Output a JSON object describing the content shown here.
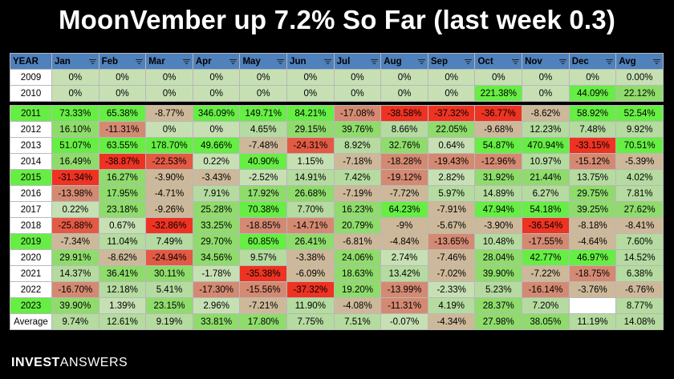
{
  "chart_data": {
    "type": "table",
    "title": "MoonVember up 7.2% So Far (last week 0.3)",
    "header": [
      "YEAR",
      "Jan",
      "Feb",
      "Mar",
      "Apr",
      "May",
      "Jun",
      "Jul",
      "Aug",
      "Sep",
      "Oct",
      "Nov",
      "Dec",
      "Avg"
    ],
    "rows": [
      {
        "year": "2009",
        "values": [
          0,
          0,
          0,
          0,
          0,
          0,
          0,
          0,
          0,
          0,
          0,
          0,
          0.0
        ],
        "labels": [
          "0%",
          "0%",
          "0%",
          "0%",
          "0%",
          "0%",
          "0%",
          "0%",
          "0%",
          "0%",
          "0%",
          "0%",
          "0.00%"
        ],
        "highlight": false
      },
      {
        "year": "2010",
        "values": [
          0,
          0,
          0,
          0,
          0,
          0,
          0,
          0,
          0,
          221.38,
          0,
          44.09,
          22.12
        ],
        "labels": [
          "0%",
          "0%",
          "0%",
          "0%",
          "0%",
          "0%",
          "0%",
          "0%",
          "0%",
          "221.38%",
          "0%",
          "44.09%",
          "22.12%"
        ],
        "highlight": false
      },
      {
        "year": "2011",
        "values": [
          73.33,
          65.38,
          -8.77,
          346.09,
          149.71,
          84.21,
          -17.08,
          -38.58,
          -37.32,
          -36.77,
          -8.62,
          58.92,
          52.54
        ],
        "labels": [
          "73.33%",
          "65.38%",
          "-8.77%",
          "346.09%",
          "149.71%",
          "84.21%",
          "-17.08%",
          "-38.58%",
          "-37.32%",
          "-36.77%",
          "-8.62%",
          "58.92%",
          "52.54%"
        ],
        "highlight": true
      },
      {
        "year": "2012",
        "values": [
          16.1,
          -11.31,
          0,
          0,
          4.65,
          29.15,
          39.76,
          8.66,
          22.05,
          -9.68,
          12.23,
          7.48,
          9.92
        ],
        "labels": [
          "16.10%",
          "-11.31%",
          "0%",
          "0%",
          "4.65%",
          "29.15%",
          "39.76%",
          "8.66%",
          "22.05%",
          "-9.68%",
          "12.23%",
          "7.48%",
          "9.92%"
        ],
        "highlight": false
      },
      {
        "year": "2013",
        "values": [
          51.07,
          63.55,
          178.7,
          49.66,
          -7.48,
          -24.31,
          8.92,
          32.76,
          0.64,
          54.87,
          470.94,
          -33.15,
          70.51
        ],
        "labels": [
          "51.07%",
          "63.55%",
          "178.70%",
          "49.66%",
          "-7.48%",
          "-24.31%",
          "8.92%",
          "32.76%",
          "0.64%",
          "54.87%",
          "470.94%",
          "-33.15%",
          "70.51%"
        ],
        "highlight": false
      },
      {
        "year": "2014",
        "values": [
          16.49,
          -38.87,
          -22.53,
          0.22,
          40.9,
          1.15,
          -7.18,
          -18.28,
          -19.43,
          -12.96,
          10.97,
          -15.12,
          -5.39
        ],
        "labels": [
          "16.49%",
          "-38.87%",
          "-22.53%",
          "0.22%",
          "40.90%",
          "1.15%",
          "-7.18%",
          "-18.28%",
          "-19.43%",
          "-12.96%",
          "10.97%",
          "-15.12%",
          "-5.39%"
        ],
        "highlight": false
      },
      {
        "year": "2015",
        "values": [
          -31.34,
          16.27,
          -3.9,
          -3.43,
          -2.52,
          14.91,
          7.42,
          -19.12,
          2.82,
          31.92,
          21.44,
          13.75,
          4.02
        ],
        "labels": [
          "-31.34%",
          "16.27%",
          "-3.90%",
          "-3.43%",
          "-2.52%",
          "14.91%",
          "7.42%",
          "-19.12%",
          "2.82%",
          "31.92%",
          "21.44%",
          "13.75%",
          "4.02%"
        ],
        "highlight": true
      },
      {
        "year": "2016",
        "values": [
          -13.98,
          17.95,
          -4.71,
          7.91,
          17.92,
          26.68,
          -7.19,
          -7.72,
          5.97,
          14.89,
          6.27,
          29.75,
          7.81
        ],
        "labels": [
          "-13.98%",
          "17.95%",
          "-4.71%",
          "7.91%",
          "17.92%",
          "26.68%",
          "-7.19%",
          "-7.72%",
          "5.97%",
          "14.89%",
          "6.27%",
          "29.75%",
          "7.81%"
        ],
        "highlight": false
      },
      {
        "year": "2017",
        "values": [
          0.22,
          23.18,
          -9.26,
          25.28,
          70.38,
          7.7,
          16.23,
          64.23,
          -7.91,
          47.94,
          54.18,
          39.25,
          27.62
        ],
        "labels": [
          "0.22%",
          "23.18%",
          "-9.26%",
          "25.28%",
          "70.38%",
          "7.70%",
          "16.23%",
          "64.23%",
          "-7.91%",
          "47.94%",
          "54.18%",
          "39.25%",
          "27.62%"
        ],
        "highlight": false
      },
      {
        "year": "2018",
        "values": [
          -25.88,
          0.67,
          -32.86,
          33.25,
          -18.85,
          -14.71,
          20.79,
          -9,
          -5.67,
          -3.9,
          -36.54,
          -8.18,
          -8.41
        ],
        "labels": [
          "-25.88%",
          "0.67%",
          "-32.86%",
          "33.25%",
          "-18.85%",
          "-14.71%",
          "20.79%",
          "-9%",
          "-5.67%",
          "-3.90%",
          "-36.54%",
          "-8.18%",
          "-8.41%"
        ],
        "highlight": false
      },
      {
        "year": "2019",
        "values": [
          -7.34,
          11.04,
          7.49,
          29.7,
          60.85,
          26.41,
          -6.81,
          -4.84,
          -13.65,
          10.48,
          -17.55,
          -4.64,
          7.6
        ],
        "labels": [
          "-7.34%",
          "11.04%",
          "7.49%",
          "29.70%",
          "60.85%",
          "26.41%",
          "-6.81%",
          "-4.84%",
          "-13.65%",
          "10.48%",
          "-17.55%",
          "-4.64%",
          "7.60%"
        ],
        "highlight": true
      },
      {
        "year": "2020",
        "values": [
          29.91,
          -8.62,
          -24.94,
          34.56,
          9.57,
          -3.38,
          24.06,
          2.74,
          -7.46,
          28.04,
          42.77,
          46.97,
          14.52
        ],
        "labels": [
          "29.91%",
          "-8.62%",
          "-24.94%",
          "34.56%",
          "9.57%",
          "-3.38%",
          "24.06%",
          "2.74%",
          "-7.46%",
          "28.04%",
          "42.77%",
          "46.97%",
          "14.52%"
        ],
        "highlight": false
      },
      {
        "year": "2021",
        "values": [
          14.37,
          36.41,
          30.11,
          -1.78,
          -35.38,
          -6.09,
          18.63,
          13.42,
          -7.02,
          39.9,
          -7.22,
          -18.75,
          6.38
        ],
        "labels": [
          "14.37%",
          "36.41%",
          "30.11%",
          "-1.78%",
          "-35.38%",
          "-6.09%",
          "18.63%",
          "13.42%",
          "-7.02%",
          "39.90%",
          "-7.22%",
          "-18.75%",
          "6.38%"
        ],
        "highlight": false
      },
      {
        "year": "2022",
        "values": [
          -16.7,
          12.18,
          5.41,
          -17.3,
          -15.56,
          -37.32,
          19.2,
          -13.99,
          -2.33,
          5.23,
          -16.14,
          -3.76,
          -6.76
        ],
        "labels": [
          "-16.70%",
          "12.18%",
          "5.41%",
          "-17.30%",
          "-15.56%",
          "-37.32%",
          "19.20%",
          "-13.99%",
          "-2.33%",
          "5.23%",
          "-16.14%",
          "-3.76%",
          "-6.76%"
        ],
        "highlight": false
      },
      {
        "year": "2023",
        "values": [
          39.9,
          1.39,
          23.15,
          2.96,
          -7.21,
          11.9,
          -4.08,
          -11.31,
          4.19,
          28.37,
          7.2,
          null,
          8.77
        ],
        "labels": [
          "39.90%",
          "1.39%",
          "23.15%",
          "2.96%",
          "-7.21%",
          "11.90%",
          "-4.08%",
          "-11.31%",
          "4.19%",
          "28.37%",
          "7.20%",
          "",
          "8.77%"
        ],
        "highlight": true
      },
      {
        "year": "Average",
        "values": [
          9.74,
          12.61,
          9.19,
          33.81,
          17.8,
          7.75,
          7.51,
          -0.07,
          -4.34,
          27.98,
          38.05,
          11.19,
          14.08
        ],
        "labels": [
          "9.74%",
          "12.61%",
          "9.19%",
          "33.81%",
          "17.80%",
          "7.75%",
          "7.51%",
          "-0.07%",
          "-4.34%",
          "27.98%",
          "38.05%",
          "11.19%",
          "14.08%"
        ],
        "highlight": false
      }
    ]
  },
  "brand": {
    "part1": "INVEST",
    "part2": "ANSWERS"
  },
  "colors": {
    "header": "#4f81bd",
    "year_highlight": "#66ee44",
    "strong_negative": "#ee3322",
    "strong_positive": "#66ee44",
    "neutral": "#c6e0b4",
    "blank": "#ffffff"
  },
  "icons": {
    "filter": "filter-dropdown-icon"
  }
}
